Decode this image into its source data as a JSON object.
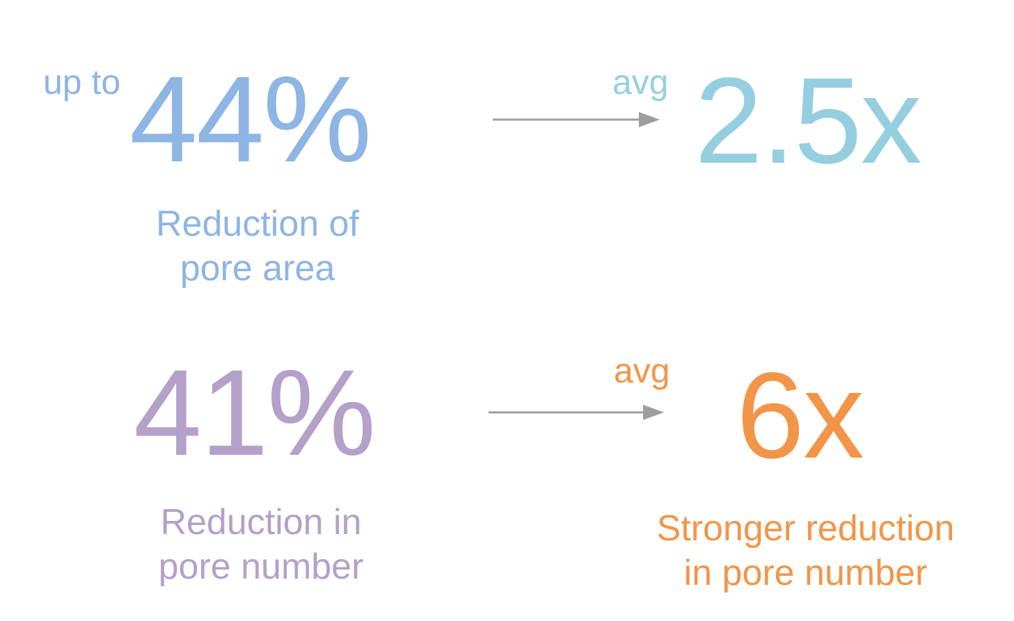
{
  "colors": {
    "blue": "#8EB5E3",
    "teal": "#95CFDF",
    "purple": "#B3A1CA",
    "orange": "#F39548",
    "arrow": "#9E9E9E"
  },
  "row1": {
    "prefix": "up to",
    "value": "44%",
    "caption_line1": "Reduction of",
    "caption_line2": "pore area",
    "arrow_icon": "arrow-right-icon",
    "result_prefix": "avg",
    "result_value": "2.5x"
  },
  "row2": {
    "value": "41%",
    "caption_line1": "Reduction in",
    "caption_line2": "pore number",
    "arrow_icon": "arrow-right-icon",
    "result_prefix": "avg",
    "result_value": "6x",
    "result_caption_line1": "Stronger reduction",
    "result_caption_line2": "in pore number"
  }
}
